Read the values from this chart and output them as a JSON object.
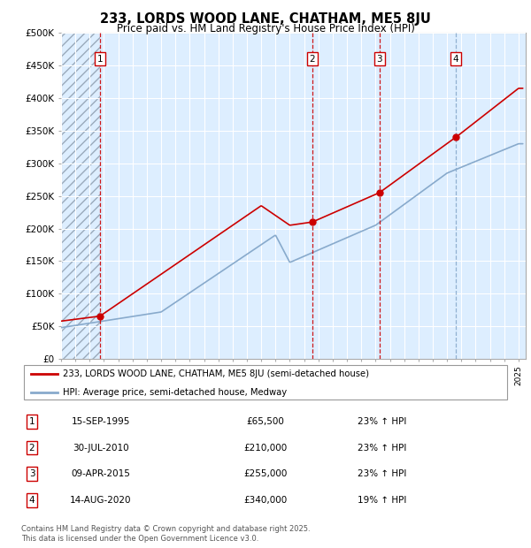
{
  "title": "233, LORDS WOOD LANE, CHATHAM, ME5 8JU",
  "subtitle": "Price paid vs. HM Land Registry's House Price Index (HPI)",
  "ylim": [
    0,
    500000
  ],
  "yticks": [
    0,
    50000,
    100000,
    150000,
    200000,
    250000,
    300000,
    350000,
    400000,
    450000,
    500000
  ],
  "ytick_labels": [
    "£0",
    "£50K",
    "£100K",
    "£150K",
    "£200K",
    "£250K",
    "£300K",
    "£350K",
    "£400K",
    "£450K",
    "£500K"
  ],
  "xlim_start": 1993.0,
  "xlim_end": 2025.5,
  "sale_color": "#cc0000",
  "hpi_color": "#88aacc",
  "grid_color": "#cccccc",
  "bg_color": "#ddeeff",
  "transactions": [
    {
      "date_decimal": 1995.71,
      "price": 65500,
      "label": "1",
      "line_color": "#cc0000"
    },
    {
      "date_decimal": 2010.58,
      "price": 210000,
      "label": "2",
      "line_color": "#cc0000"
    },
    {
      "date_decimal": 2015.27,
      "price": 255000,
      "label": "3",
      "line_color": "#cc0000"
    },
    {
      "date_decimal": 2020.62,
      "price": 340000,
      "label": "4",
      "line_color": "#88aacc"
    }
  ],
  "table_rows": [
    {
      "num": "1",
      "date": "15-SEP-1995",
      "price": "£65,500",
      "hpi": "23% ↑ HPI"
    },
    {
      "num": "2",
      "date": "30-JUL-2010",
      "price": "£210,000",
      "hpi": "23% ↑ HPI"
    },
    {
      "num": "3",
      "date": "09-APR-2015",
      "price": "£255,000",
      "hpi": "23% ↑ HPI"
    },
    {
      "num": "4",
      "date": "14-AUG-2020",
      "price": "£340,000",
      "hpi": "19% ↑ HPI"
    }
  ],
  "legend_line1": "233, LORDS WOOD LANE, CHATHAM, ME5 8JU (semi-detached house)",
  "legend_line2": "HPI: Average price, semi-detached house, Medway",
  "footer": "Contains HM Land Registry data © Crown copyright and database right 2025.\nThis data is licensed under the Open Government Licence v3.0."
}
